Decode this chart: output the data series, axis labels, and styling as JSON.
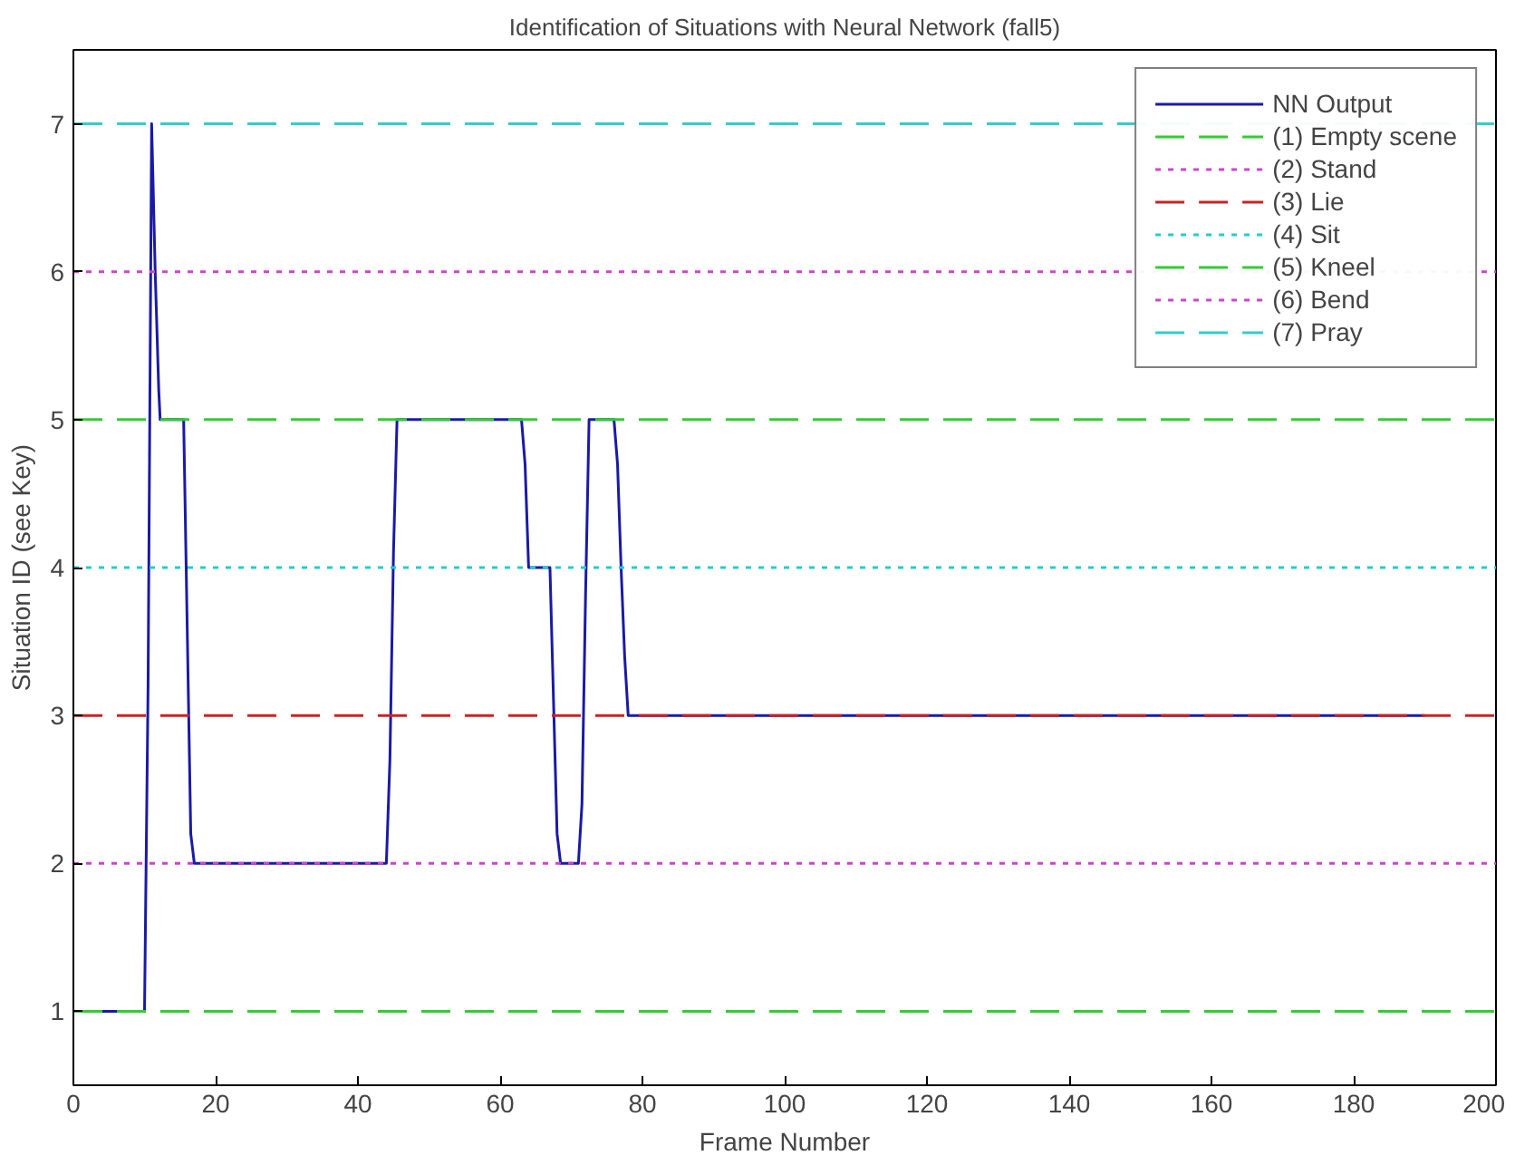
{
  "chart_data": {
    "type": "line",
    "title": "Identification of Situations with Neural Network (fall5)",
    "xlabel": "Frame Number",
    "ylabel": "Situation ID (see Key)",
    "xlim": [
      0,
      200
    ],
    "ylim": [
      0.5,
      7.5
    ],
    "xticks": [
      0,
      20,
      40,
      60,
      80,
      100,
      120,
      140,
      160,
      180,
      200
    ],
    "yticks": [
      1,
      2,
      3,
      4,
      5,
      6,
      7
    ],
    "grid": false,
    "legend": "top right",
    "marker": "none",
    "series": [
      {
        "name": "NN Output",
        "color": "#1a1aa6",
        "line_style": "solid",
        "x": [
          1,
          10,
          10.5,
          11,
          11.2,
          11.5,
          12,
          12.2,
          15.5,
          16,
          16.5,
          17,
          44,
          44.5,
          45,
          45.5,
          63,
          63.5,
          64,
          67,
          67.5,
          68,
          68.5,
          71,
          71.5,
          72,
          72.5,
          76,
          76.5,
          77,
          77.5,
          78,
          190
        ],
        "values": [
          1,
          1,
          3.2,
          7,
          6.6,
          6,
          5.2,
          5,
          5,
          3.6,
          2.2,
          2,
          2,
          2.7,
          4.1,
          5,
          5,
          4.7,
          4,
          4,
          3.1,
          2.2,
          2,
          2,
          2.4,
          3.8,
          5,
          5,
          4.7,
          4,
          3.4,
          3,
          3
        ]
      },
      {
        "name": "(1) Empty scene",
        "color": "#33cc33",
        "line_style": "dashed",
        "x": [
          0,
          200
        ],
        "values": [
          1,
          1
        ]
      },
      {
        "name": "(2) Stand",
        "color": "#cc44cc",
        "line_style": "dotted",
        "x": [
          0,
          200
        ],
        "values": [
          2,
          2
        ]
      },
      {
        "name": "(3) Lie",
        "color": "#cc2222",
        "line_style": "dashed",
        "x": [
          0,
          200
        ],
        "values": [
          3,
          3
        ]
      },
      {
        "name": "(4) Sit",
        "color": "#22cccc",
        "line_style": "dotted",
        "x": [
          0,
          200
        ],
        "values": [
          4,
          4
        ]
      },
      {
        "name": "(5) Kneel",
        "color": "#33cc33",
        "line_style": "dashed",
        "x": [
          0,
          200
        ],
        "values": [
          5,
          5
        ]
      },
      {
        "name": "(6) Bend",
        "color": "#cc44cc",
        "line_style": "dotted",
        "x": [
          0,
          200
        ],
        "values": [
          6,
          6
        ]
      },
      {
        "name": "(7) Pray",
        "color": "#33cccc",
        "line_style": "dashed",
        "x": [
          0,
          200
        ],
        "values": [
          7,
          7
        ]
      }
    ]
  }
}
